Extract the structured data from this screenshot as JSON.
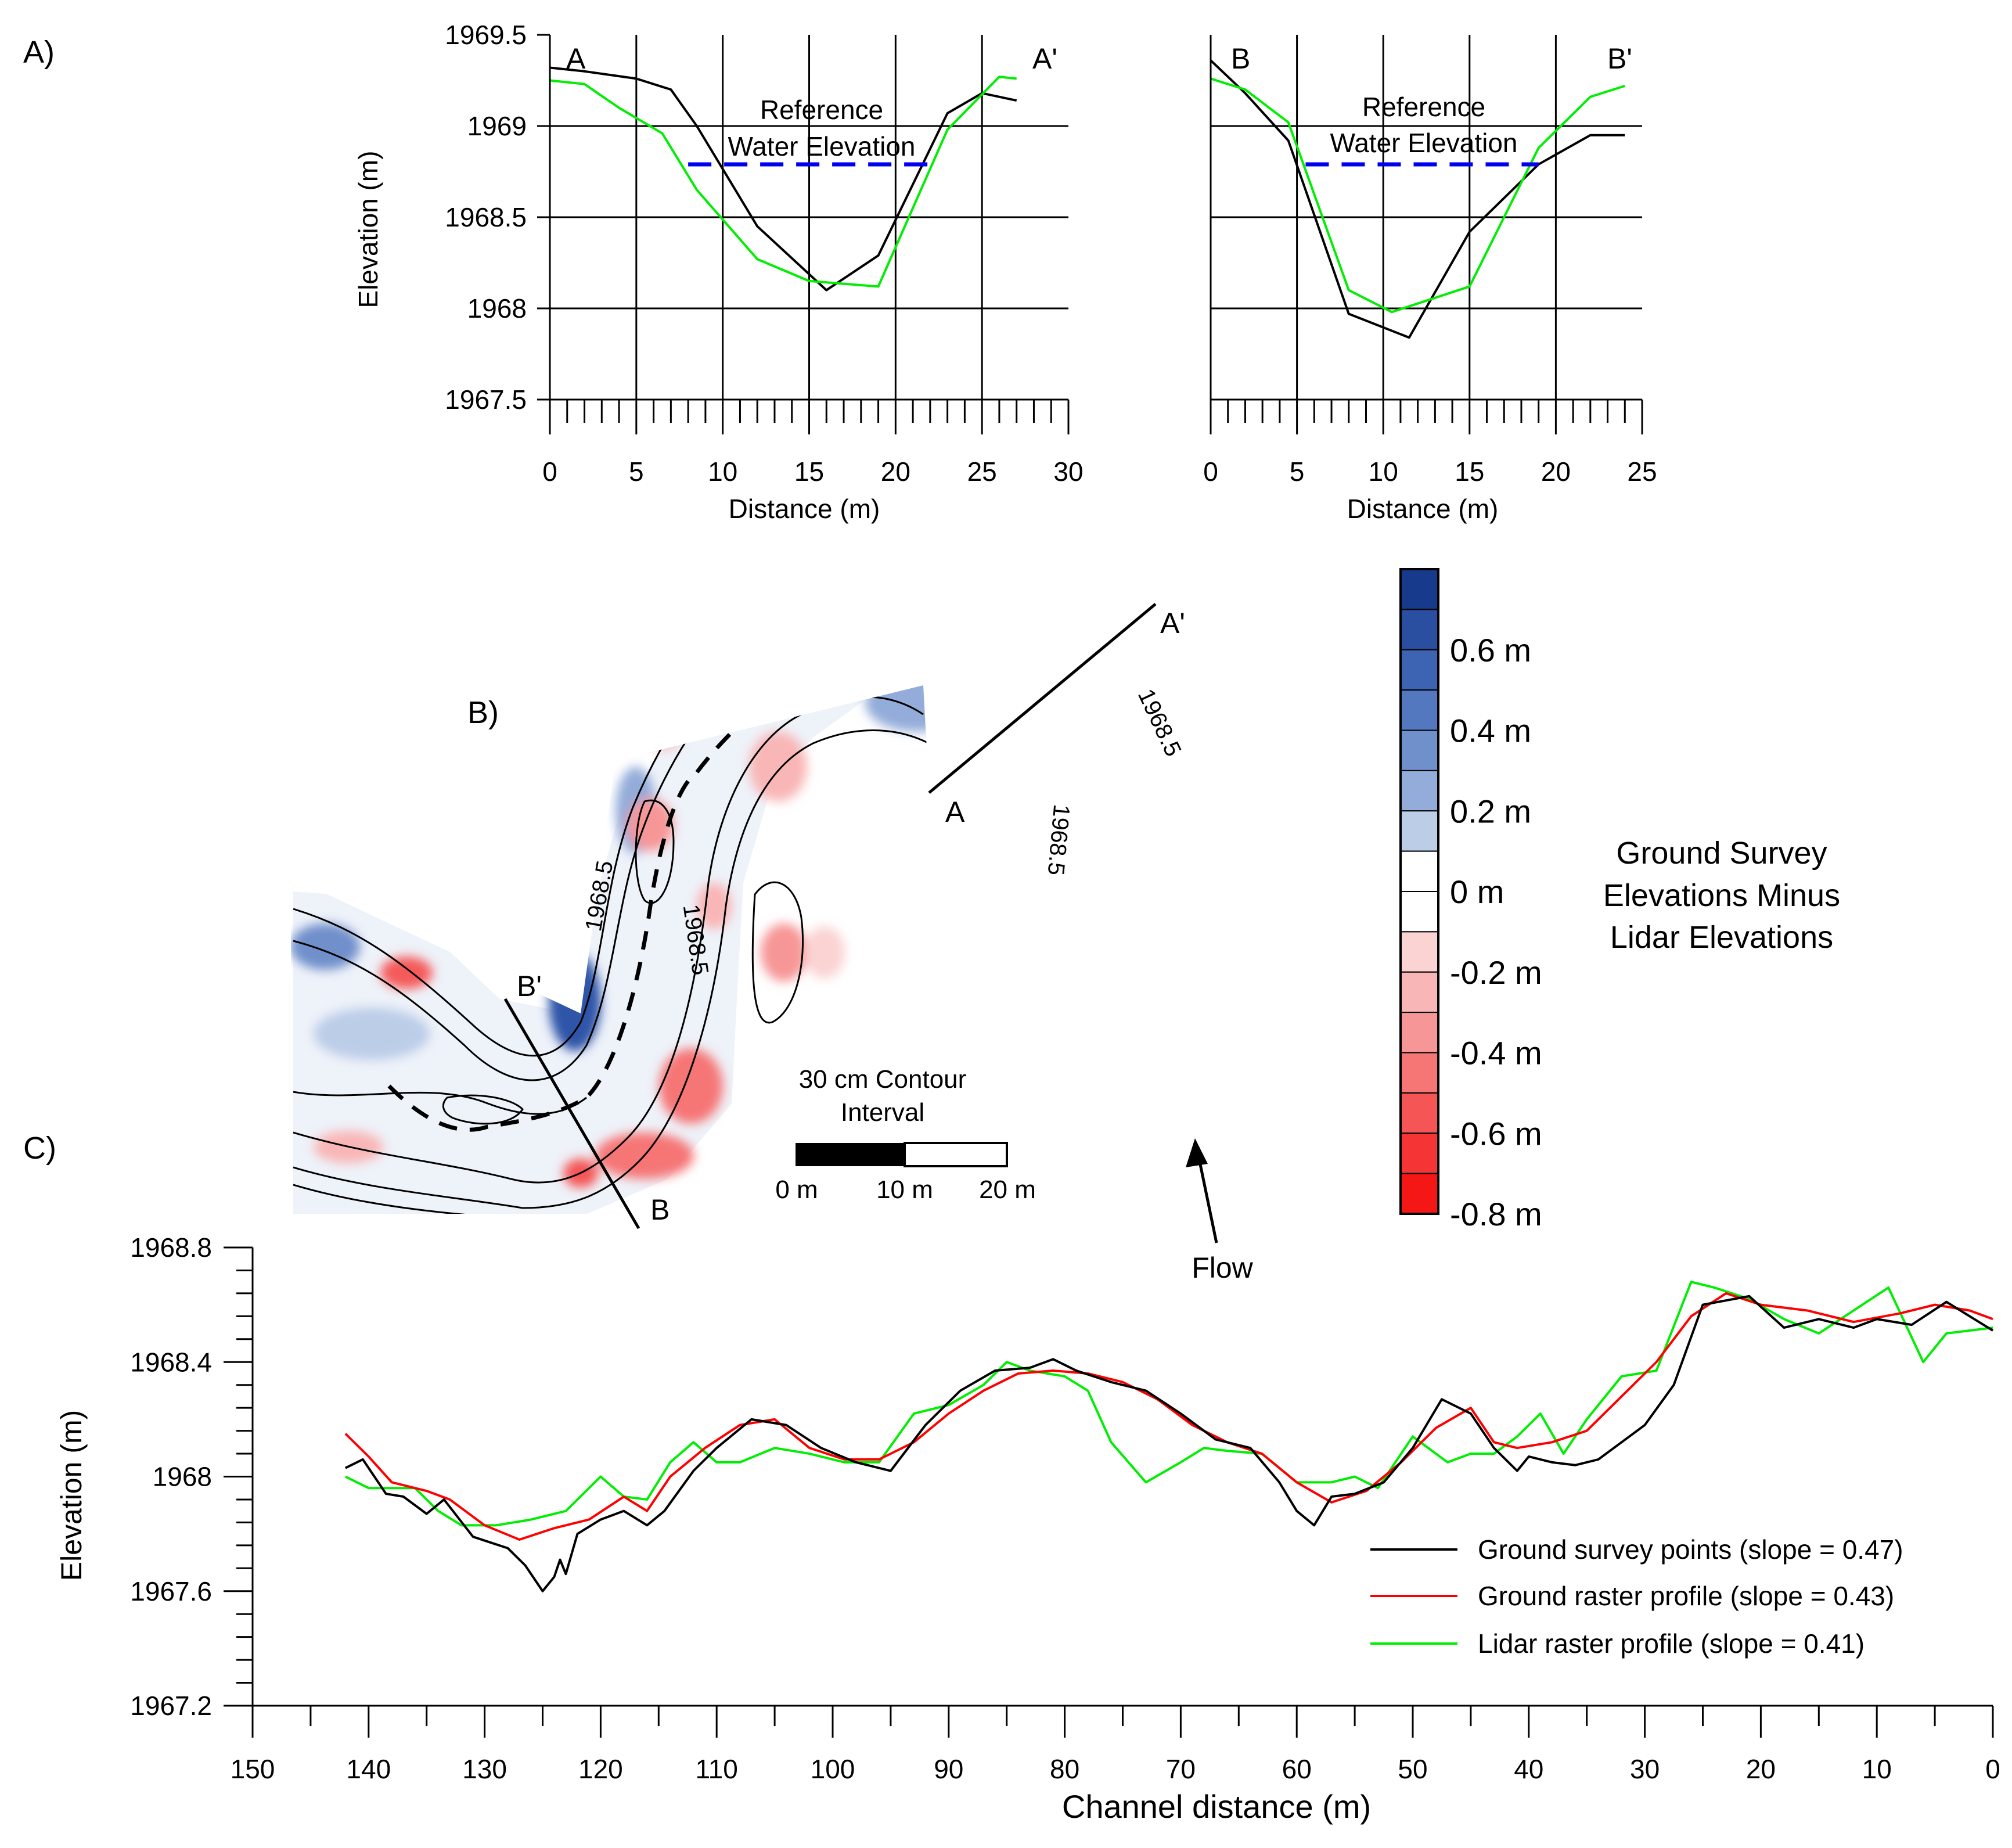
{
  "panel_labels": {
    "a": "A)",
    "b": "B)",
    "c": "C)"
  },
  "colors": {
    "ground_survey": "#000000",
    "ground_raster": "#ff0000",
    "lidar_raster": "#00ee00",
    "reference_water": "#0000ee",
    "positive_diff": "#2a4fa0",
    "negative_diff": "#ff2a2a"
  },
  "chart_data": [
    {
      "id": "A-left",
      "type": "line",
      "section_start": "A",
      "section_end": "A'",
      "xlabel": "Distance (m)",
      "ylabel": "Elevation (m)",
      "xlim": [
        0,
        30
      ],
      "ylim": [
        1967.5,
        1969.5
      ],
      "x_ticks": [
        0,
        5,
        10,
        15,
        20,
        25,
        30
      ],
      "y_ticks": [
        1967.5,
        1968,
        1968.5,
        1969,
        1969.5
      ],
      "y_tick_labels": [
        "1967.5",
        "1968",
        "1968.5",
        "1969",
        "1969.5"
      ],
      "grid": true,
      "annotation": [
        "Reference",
        "Water Elevation"
      ],
      "reference_water": {
        "y": 1968.79,
        "x": [
          8,
          22
        ]
      },
      "series": [
        {
          "name": "Ground survey",
          "color": "#000000",
          "x": [
            0,
            2,
            5,
            7,
            8.5,
            12,
            16,
            19,
            23,
            25,
            27
          ],
          "y": [
            1969.32,
            1969.3,
            1969.26,
            1969.2,
            1969.0,
            1968.45,
            1968.1,
            1968.29,
            1969.07,
            1969.18,
            1969.14
          ]
        },
        {
          "name": "Lidar",
          "color": "#00ee00",
          "x": [
            0,
            2,
            4,
            6.5,
            8.5,
            12,
            15,
            19,
            23,
            26,
            27
          ],
          "y": [
            1969.25,
            1969.23,
            1969.1,
            1968.96,
            1968.65,
            1968.27,
            1968.15,
            1968.12,
            1968.98,
            1969.27,
            1969.26
          ]
        }
      ]
    },
    {
      "id": "A-right",
      "type": "line",
      "section_start": "B",
      "section_end": "B'",
      "xlabel": "Distance (m)",
      "xlim": [
        0,
        25
      ],
      "ylim": [
        1967.5,
        1969.5
      ],
      "x_ticks": [
        0,
        5,
        10,
        15,
        20,
        25
      ],
      "y_ticks": [
        1967.5,
        1968,
        1968.5,
        1969,
        1969.5
      ],
      "grid": true,
      "annotation": [
        "Reference",
        "Water Elevation"
      ],
      "reference_water": {
        "y": 1968.79,
        "x": [
          5.5,
          19
        ]
      },
      "series": [
        {
          "name": "Ground survey",
          "color": "#000000",
          "x": [
            0,
            2,
            4.5,
            8,
            11.5,
            15,
            19,
            22,
            24
          ],
          "y": [
            1969.36,
            1969.18,
            1968.92,
            1967.97,
            1967.84,
            1968.42,
            1968.79,
            1968.95,
            1968.95
          ]
        },
        {
          "name": "Lidar",
          "color": "#00ee00",
          "x": [
            0,
            2,
            4.5,
            8,
            10.5,
            15,
            19,
            22,
            24
          ],
          "y": [
            1969.26,
            1969.2,
            1969.02,
            1968.1,
            1967.98,
            1968.12,
            1968.88,
            1969.16,
            1969.22
          ]
        }
      ]
    },
    {
      "id": "C",
      "type": "line",
      "xlabel": "Channel distance (m)",
      "ylabel": "Elevation (m)",
      "xlim": [
        150,
        0
      ],
      "ylim": [
        1967.2,
        1968.8
      ],
      "x_ticks": [
        150,
        140,
        130,
        120,
        110,
        100,
        90,
        80,
        70,
        60,
        50,
        40,
        30,
        20,
        10,
        0
      ],
      "y_ticks": [
        1967.2,
        1967.6,
        1968,
        1968.4,
        1968.8
      ],
      "y_tick_labels": [
        "1967.2",
        "1967.6",
        "1968",
        "1968.4",
        "1968.8"
      ],
      "grid": false,
      "legend_position": "bottom-right",
      "series": [
        {
          "name": "Ground survey points (slope = 0.47)",
          "color": "#000000",
          "x": [
            142,
            140.5,
            138.5,
            137,
            135,
            133.5,
            131,
            129.5,
            128,
            126.5,
            126,
            125,
            124,
            123.5,
            123,
            122,
            120,
            118,
            116,
            114.5,
            112,
            110,
            107,
            104,
            101,
            98,
            95,
            92,
            89,
            86,
            83,
            81,
            79,
            76,
            73,
            70,
            67,
            64,
            61.5,
            60,
            58.5,
            57,
            55,
            52.5,
            50,
            47.5,
            45,
            43,
            41,
            40,
            38,
            36,
            34,
            32,
            30,
            27.5,
            25,
            21,
            18,
            15,
            12,
            10,
            7,
            4,
            0
          ],
          "y": [
            1968.03,
            1968.06,
            1967.94,
            1967.93,
            1967.87,
            1967.92,
            1967.79,
            1967.77,
            1967.75,
            1967.69,
            1967.66,
            1967.6,
            1967.65,
            1967.71,
            1967.66,
            1967.8,
            1967.85,
            1967.88,
            1967.83,
            1967.88,
            1968.02,
            1968.1,
            1968.2,
            1968.18,
            1968.1,
            1968.05,
            1968.02,
            1968.18,
            1968.3,
            1968.37,
            1968.38,
            1968.41,
            1968.37,
            1968.33,
            1968.3,
            1968.22,
            1968.13,
            1968.1,
            1967.98,
            1967.88,
            1967.83,
            1967.93,
            1967.94,
            1967.98,
            1968.1,
            1968.27,
            1968.22,
            1968.1,
            1968.02,
            1968.07,
            1968.05,
            1968.04,
            1968.06,
            1968.12,
            1968.18,
            1968.32,
            1968.6,
            1968.63,
            1968.52,
            1968.55,
            1968.52,
            1968.55,
            1968.53,
            1968.61,
            1968.51
          ]
        },
        {
          "name": "Ground raster profile (slope = 0.43)",
          "color": "#ff0000",
          "x": [
            142,
            140,
            138,
            135,
            133,
            130,
            127,
            124,
            121,
            118,
            116,
            114,
            111,
            108,
            105,
            102,
            99,
            96,
            93,
            90,
            87,
            84,
            81,
            78,
            75,
            72,
            69,
            66,
            63,
            60,
            57,
            54,
            51,
            48,
            45,
            43,
            41,
            38,
            35,
            32,
            29,
            26,
            23,
            20,
            16,
            12,
            8,
            5,
            2,
            0
          ],
          "y": [
            1968.15,
            1968.07,
            1967.98,
            1967.95,
            1967.92,
            1967.83,
            1967.78,
            1967.82,
            1967.85,
            1967.93,
            1967.88,
            1968.0,
            1968.1,
            1968.18,
            1968.2,
            1968.1,
            1968.06,
            1968.06,
            1968.12,
            1968.22,
            1968.3,
            1968.36,
            1968.37,
            1968.36,
            1968.33,
            1968.27,
            1968.18,
            1968.12,
            1968.08,
            1967.98,
            1967.91,
            1967.95,
            1968.05,
            1968.17,
            1968.24,
            1968.12,
            1968.1,
            1968.12,
            1968.16,
            1968.28,
            1968.4,
            1968.56,
            1968.64,
            1968.6,
            1968.58,
            1968.54,
            1968.57,
            1968.6,
            1968.58,
            1968.55
          ]
        },
        {
          "name": "Lidar raster profile (slope = 0.41)",
          "color": "#00ee00",
          "x": [
            142,
            140,
            138,
            136,
            134,
            132,
            129,
            126,
            123,
            120,
            118,
            116,
            114,
            112,
            110,
            108,
            105,
            102,
            99,
            96,
            93,
            90,
            87,
            85,
            83,
            80,
            78,
            76,
            73,
            70,
            68,
            66,
            63,
            60,
            57,
            55,
            53,
            50,
            47,
            45,
            43,
            41,
            39,
            37,
            35,
            32,
            29,
            26,
            24,
            21,
            18,
            15,
            12,
            9,
            6,
            4,
            2,
            0
          ],
          "y": [
            1968.0,
            1967.96,
            1967.96,
            1967.96,
            1967.88,
            1967.83,
            1967.83,
            1967.85,
            1967.88,
            1968.0,
            1967.93,
            1967.92,
            1968.05,
            1968.12,
            1968.05,
            1968.05,
            1968.1,
            1968.08,
            1968.05,
            1968.05,
            1968.22,
            1968.25,
            1968.32,
            1968.4,
            1968.37,
            1968.35,
            1968.3,
            1968.12,
            1967.98,
            1968.05,
            1968.1,
            1968.09,
            1968.08,
            1967.98,
            1967.98,
            1968.0,
            1967.96,
            1968.14,
            1968.05,
            1968.08,
            1968.08,
            1968.14,
            1968.22,
            1968.08,
            1968.2,
            1968.35,
            1968.37,
            1968.68,
            1968.66,
            1968.62,
            1968.55,
            1968.5,
            1968.58,
            1968.66,
            1968.4,
            1968.5,
            1968.51,
            1968.52
          ]
        }
      ]
    }
  ],
  "map": {
    "labels": {
      "b_prime": "B'",
      "b": "B",
      "a": "A",
      "a_prime": "A'"
    },
    "contour_labels": [
      "1968.5",
      "1968.5",
      "1968.5",
      "1968.5"
    ],
    "scale_title": [
      "30 cm Contour",
      "Interval"
    ],
    "scale_ticks": [
      "0 m",
      "10 m",
      "20 m"
    ],
    "flow_label": "Flow"
  },
  "colorbar": {
    "title": [
      "Ground Survey",
      "Elevations Minus",
      "Lidar Elevations"
    ],
    "labels": [
      "0.6 m",
      "0.4 m",
      "0.2 m",
      "0 m",
      "-0.2 m",
      "-0.4 m",
      "-0.6 m",
      "-0.8 m"
    ],
    "colors": [
      "#173a8c",
      "#2a4fa0",
      "#3d63b3",
      "#5478c0",
      "#7090cc",
      "#93acd9",
      "#bccde8",
      "#ffffff",
      "#ffffff",
      "#fbd3d3",
      "#f9b6b6",
      "#f79696",
      "#f67676",
      "#f55555",
      "#f53535",
      "#f51616"
    ]
  }
}
